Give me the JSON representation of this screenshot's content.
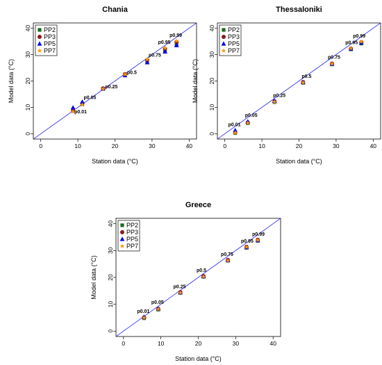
{
  "chart_data": [
    {
      "type": "scatter",
      "title": "Chania",
      "xlabel": "Station data (°C)",
      "ylabel": "Model data (°C)",
      "xlim": [
        -2,
        42
      ],
      "ylim": [
        -2,
        42
      ],
      "xticks": [
        0,
        10,
        20,
        30,
        40
      ],
      "yticks": [
        0,
        10,
        20,
        30,
        40
      ],
      "reference_line": "y = x",
      "legend": "top-left",
      "quantile_labels": [
        "p0.01",
        "p0.05",
        "p0.25",
        "p0.5",
        "p0.75",
        "p0.95",
        "p0.99"
      ],
      "station_x": [
        8.7,
        11.2,
        16.8,
        22.7,
        28.7,
        33.5,
        36.6
      ],
      "series": [
        {
          "name": "PP2",
          "values": [
            9.0,
            11.2,
            17.0,
            22.2,
            27.4,
            31.6,
            33.9
          ]
        },
        {
          "name": "PP3",
          "values": [
            8.7,
            11.5,
            17.2,
            22.6,
            27.9,
            32.2,
            34.7
          ]
        },
        {
          "name": "PP5",
          "values": [
            9.9,
            12.1,
            17.0,
            22.1,
            27.0,
            31.1,
            33.5
          ]
        },
        {
          "name": "PP7",
          "values": [
            8.4,
            11.0,
            17.0,
            22.5,
            28.2,
            32.5,
            35.2
          ]
        }
      ]
    },
    {
      "type": "scatter",
      "title": "Thessaloniki",
      "xlabel": "Station data (°C)",
      "ylabel": "Model data (°C)",
      "xlim": [
        -2,
        42
      ],
      "ylim": [
        -2,
        42
      ],
      "xticks": [
        0,
        10,
        20,
        30,
        40
      ],
      "yticks": [
        0,
        10,
        20,
        30,
        40
      ],
      "reference_line": "y = x",
      "legend": "top-left",
      "quantile_labels": [
        "p0.01",
        "p0.05",
        "p0.25",
        "p0.5",
        "p0.75",
        "p0.95",
        "p0.99"
      ],
      "station_x": [
        2.8,
        6.2,
        13.4,
        21.1,
        28.9,
        34.0,
        36.8
      ],
      "series": [
        {
          "name": "PP2",
          "values": [
            0.3,
            4.0,
            12.0,
            19.3,
            26.3,
            32.0,
            34.2
          ]
        },
        {
          "name": "PP3",
          "values": [
            0.6,
            4.3,
            12.3,
            19.6,
            26.6,
            32.3,
            34.7
          ]
        },
        {
          "name": "PP5",
          "values": [
            1.3,
            4.6,
            12.4,
            19.5,
            26.4,
            32.2,
            34.5
          ]
        },
        {
          "name": "PP7",
          "values": [
            0.4,
            4.1,
            12.1,
            19.4,
            26.5,
            32.4,
            34.9
          ]
        }
      ]
    },
    {
      "type": "scatter",
      "title": "Greece",
      "xlabel": "Station data (°C)",
      "ylabel": "Model data (°C)",
      "xlim": [
        -2,
        42
      ],
      "ylim": [
        -2,
        42
      ],
      "xticks": [
        0,
        10,
        20,
        30,
        40
      ],
      "yticks": [
        0,
        10,
        20,
        30,
        40
      ],
      "reference_line": "y = x",
      "legend": "top-left",
      "quantile_labels": [
        "p0.01",
        "p0.05",
        "p0.25",
        "p0.5",
        "p0.75",
        "p0.95",
        "p0.99"
      ],
      "station_x": [
        5.5,
        9.3,
        15.2,
        21.4,
        27.9,
        32.9,
        35.9
      ],
      "series": [
        {
          "name": "PP2",
          "values": [
            4.8,
            8.0,
            14.2,
            20.2,
            26.2,
            31.0,
            33.6
          ]
        },
        {
          "name": "PP3",
          "values": [
            5.1,
            8.3,
            14.5,
            20.5,
            26.5,
            31.4,
            34.0
          ]
        },
        {
          "name": "PP5",
          "values": [
            5.3,
            8.4,
            14.4,
            20.4,
            26.4,
            31.2,
            33.8
          ]
        },
        {
          "name": "PP7",
          "values": [
            5.0,
            8.2,
            14.3,
            20.3,
            26.3,
            31.3,
            33.9
          ]
        }
      ]
    }
  ],
  "colors": {
    "PP2": "#1a6b1a",
    "PP3": "#8b1a1a",
    "PP5": "#0000ee",
    "PP7": "#ff9900",
    "reference_line": "#3333ee"
  }
}
